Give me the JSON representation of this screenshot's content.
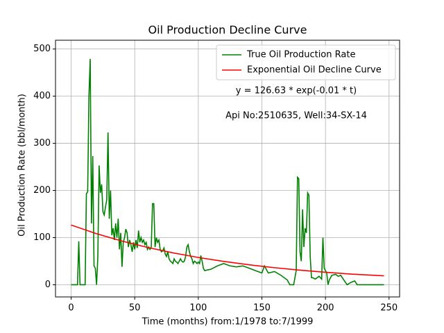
{
  "chart_data": {
    "type": "line",
    "title": "Oil Production Decline Curve",
    "xlabel": "Time (months) from:1/1978 to:7/1999",
    "ylabel": "Oil Production Rate (bbl/month)",
    "annotations": [
      "y = 126.63 * exp(-0.01 * t)",
      "Api No:2510635, Well:34-SX-14"
    ],
    "xlim": [
      -12.3,
      258.3
    ],
    "ylim": [
      -25.8,
      518.6
    ],
    "xticks": [
      0,
      50,
      100,
      150,
      200,
      250
    ],
    "yticks": [
      0,
      100,
      200,
      300,
      400,
      500
    ],
    "grid": true,
    "legend": "upper right",
    "series": [
      {
        "name": "True Oil Production Rate",
        "color": "#008000",
        "x": [
          0,
          5,
          6,
          7,
          11,
          12,
          13,
          14,
          15,
          16,
          17,
          18,
          19,
          20,
          21,
          22,
          23,
          24,
          25,
          26,
          27,
          28,
          29,
          30,
          31,
          32,
          33,
          34,
          35,
          36,
          37,
          38,
          39,
          40,
          41,
          42,
          43,
          44,
          45,
          46,
          47,
          48,
          49,
          50,
          51,
          52,
          53,
          54,
          55,
          56,
          57,
          58,
          59,
          60,
          61,
          62,
          63,
          64,
          65,
          66,
          67,
          68,
          69,
          70,
          71,
          72,
          73,
          74,
          75,
          76,
          77,
          78,
          79,
          80,
          81,
          82,
          83,
          84,
          85,
          86,
          87,
          88,
          89,
          90,
          91,
          92,
          93,
          94,
          95,
          96,
          97,
          98,
          99,
          100,
          101,
          102,
          103,
          104,
          105,
          110,
          115,
          120,
          125,
          130,
          135,
          140,
          145,
          150,
          152,
          155,
          160,
          165,
          170,
          172,
          175,
          177,
          178,
          179,
          180,
          181,
          182,
          183,
          184,
          185,
          186,
          187,
          188,
          189,
          190,
          192,
          195,
          196,
          197,
          198,
          199,
          200,
          201,
          202,
          203,
          205,
          208,
          210,
          212,
          215,
          217,
          220,
          223,
          225,
          230,
          246
        ],
        "values": [
          0,
          0,
          92,
          0,
          0,
          193,
          197,
          400,
          479,
          130,
          273,
          40,
          35,
          0,
          60,
          253,
          195,
          213,
          155,
          148,
          165,
          180,
          323,
          140,
          200,
          105,
          120,
          95,
          130,
          100,
          140,
          75,
          110,
          38,
          90,
          100,
          118,
          110,
          80,
          95,
          85,
          70,
          90,
          75,
          95,
          78,
          115,
          90,
          100,
          90,
          95,
          85,
          90,
          75,
          80,
          75,
          80,
          172,
          172,
          80,
          100,
          90,
          95,
          75,
          70,
          72,
          78,
          65,
          60,
          70,
          55,
          50,
          48,
          45,
          55,
          50,
          48,
          45,
          50,
          55,
          50,
          48,
          50,
          60,
          80,
          85,
          70,
          60,
          55,
          45,
          50,
          48,
          45,
          48,
          45,
          62,
          50,
          35,
          30,
          33,
          40,
          45,
          40,
          38,
          40,
          35,
          30,
          25,
          40,
          25,
          28,
          20,
          10,
          0,
          0,
          30,
          228,
          225,
          70,
          50,
          160,
          80,
          120,
          110,
          195,
          190,
          60,
          15,
          15,
          12,
          18,
          15,
          12,
          100,
          35,
          30,
          25,
          0,
          10,
          20,
          22,
          18,
          20,
          8,
          0,
          5,
          8,
          0,
          0,
          0
        ]
      },
      {
        "name": "Exponential Oil Decline Curve",
        "color": "#ff0000",
        "x": [
          0,
          20,
          40,
          60,
          80,
          100,
          120,
          140,
          160,
          180,
          200,
          220,
          246
        ],
        "values": [
          126.6,
          108.3,
          92.6,
          79.2,
          67.7,
          57.9,
          49.5,
          42.3,
          36.2,
          31.0,
          26.5,
          22.6,
          19.0
        ]
      }
    ]
  }
}
